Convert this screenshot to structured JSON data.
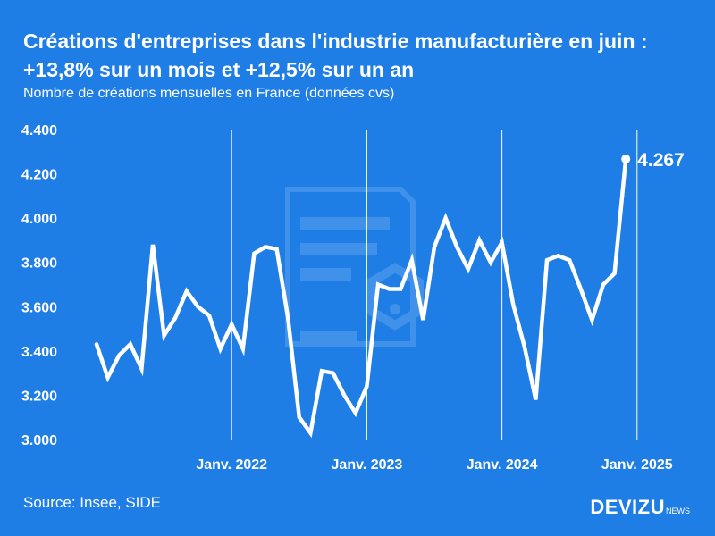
{
  "header": {
    "title_line1": "Créations d'entreprises dans l'industrie manufacturière en juin :",
    "title_line2": "+13,8% sur un mois et +12,5% sur un an",
    "subtitle": "Nombre de créations mensuelles en France (données cvs)"
  },
  "footer": {
    "source": "Source: Insee, SIDE",
    "brand": "DEVIZU",
    "brand_sub": "NEWS"
  },
  "colors": {
    "background": "#1f7de6",
    "line": "#ffffff",
    "watermark": "#5aa0ec"
  },
  "chart_data": {
    "type": "line",
    "y_ticks": [
      {
        "value": 4400,
        "label": "4.400"
      },
      {
        "value": 4200,
        "label": "4.200"
      },
      {
        "value": 4000,
        "label": "4.000"
      },
      {
        "value": 3800,
        "label": "3.800"
      },
      {
        "value": 3600,
        "label": "3.600"
      },
      {
        "value": 3400,
        "label": "3.400"
      },
      {
        "value": 3200,
        "label": "3.200"
      },
      {
        "value": 3000,
        "label": "3.000"
      }
    ],
    "ylim": [
      3000,
      4400
    ],
    "x_ticks": [
      {
        "date": "2022-01",
        "label": "Janv. 2022"
      },
      {
        "date": "2023-01",
        "label": "Janv. 2023"
      },
      {
        "date": "2024-01",
        "label": "Janv. 2024"
      },
      {
        "date": "2025-01",
        "label": "Janv. 2025"
      }
    ],
    "xlim": [
      "2021-01",
      "2025-06"
    ],
    "vertical_gridlines": true,
    "horizontal_gridlines": false,
    "last_value_label": "4.267",
    "series": [
      {
        "x": [
          "2021-01",
          "2021-02",
          "2021-03",
          "2021-04",
          "2021-05",
          "2021-06",
          "2021-07",
          "2021-08",
          "2021-09",
          "2021-10",
          "2021-11",
          "2021-12",
          "2022-01",
          "2022-02",
          "2022-03",
          "2022-04",
          "2022-05",
          "2022-06",
          "2022-07",
          "2022-08",
          "2022-09",
          "2022-10",
          "2022-11",
          "2022-12",
          "2023-01",
          "2023-02",
          "2023-03",
          "2023-04",
          "2023-05",
          "2023-06",
          "2023-07",
          "2023-08",
          "2023-09",
          "2023-10",
          "2023-11",
          "2023-12",
          "2024-01",
          "2024-02",
          "2024-03",
          "2024-04",
          "2024-05",
          "2024-06",
          "2024-07",
          "2024-08",
          "2024-09",
          "2024-10",
          "2024-11",
          "2024-12",
          "2025-01",
          "2025-02",
          "2025-03",
          "2025-04",
          "2025-05",
          "2025-06"
        ],
        "values": [
          3430,
          3280,
          3380,
          3430,
          3320,
          3880,
          3470,
          3550,
          3670,
          3600,
          3560,
          3410,
          3520,
          3410,
          3840,
          3870,
          3860,
          3550,
          3100,
          3030,
          3310,
          3300,
          3200,
          3120,
          3240,
          3700,
          3680,
          3680,
          3810,
          3540,
          3870,
          4000,
          3870,
          3770,
          3900,
          3800,
          3890,
          3610,
          3420,
          3180,
          3810,
          3830,
          3810,
          3680,
          3540,
          3700,
          3750,
          4267,
          null,
          null,
          null,
          null,
          null,
          null
        ]
      }
    ]
  }
}
